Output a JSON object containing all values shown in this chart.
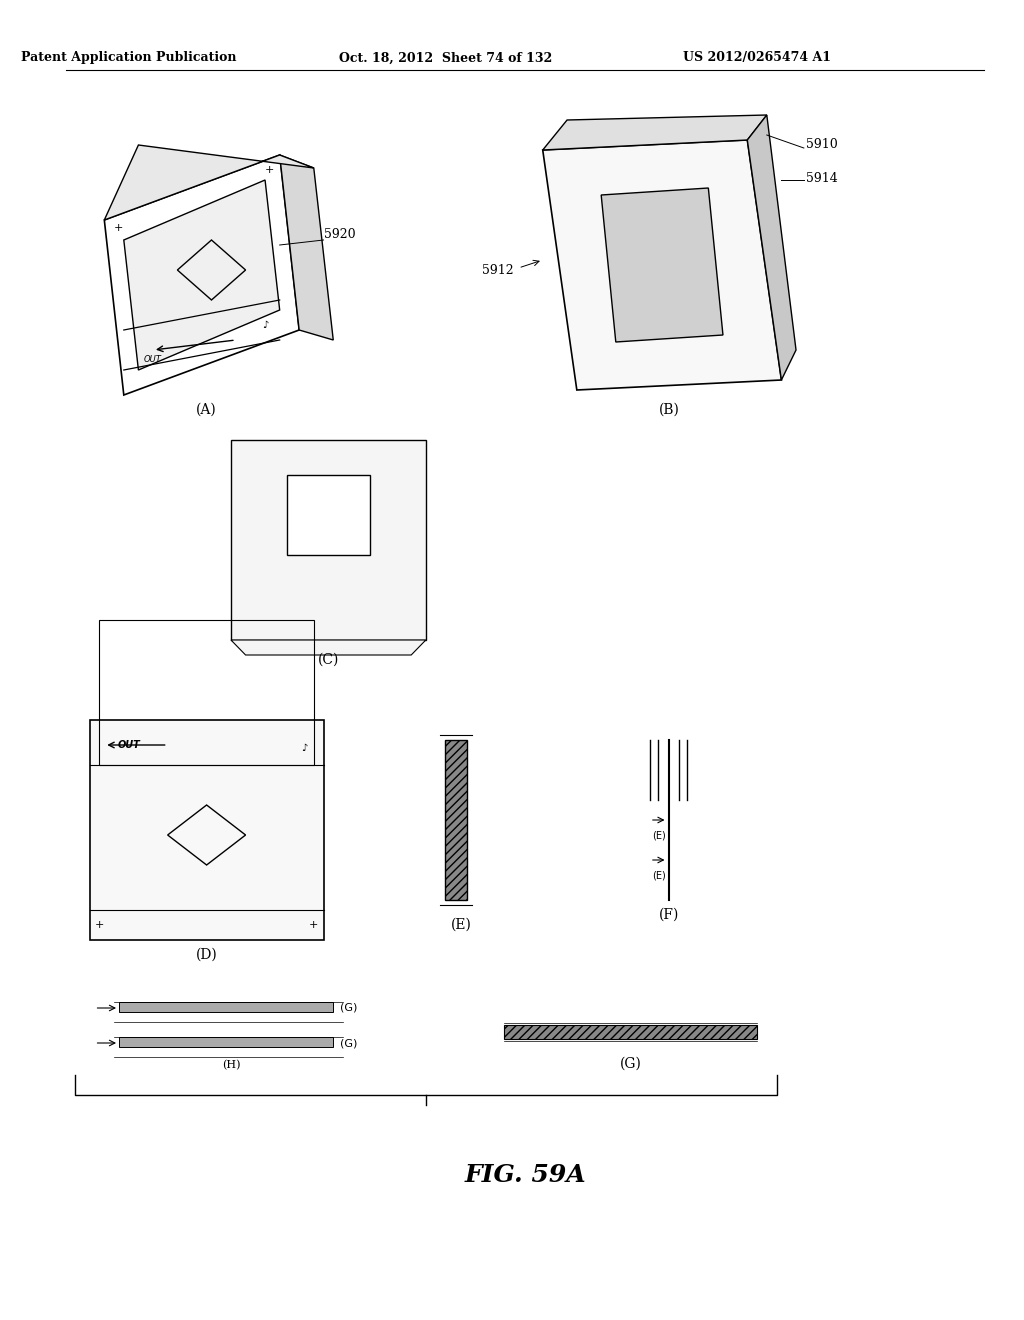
{
  "title": "FIG. 59A",
  "header_left": "Patent Application Publication",
  "header_mid": "Oct. 18, 2012  Sheet 74 of 132",
  "header_right": "US 2012/0265474 A1",
  "bg_color": "#ffffff",
  "line_color": "#000000",
  "label_A": "(A)",
  "label_B": "(B)",
  "label_C": "(C)",
  "label_D": "(D)",
  "label_E": "(E)",
  "label_F": "(F)",
  "label_G": "(G)",
  "label_H": "(H)",
  "label_Go": "(G)",
  "ref_5920": "5920",
  "ref_5910": "5910",
  "ref_5912": "5912",
  "ref_5914": "5914"
}
